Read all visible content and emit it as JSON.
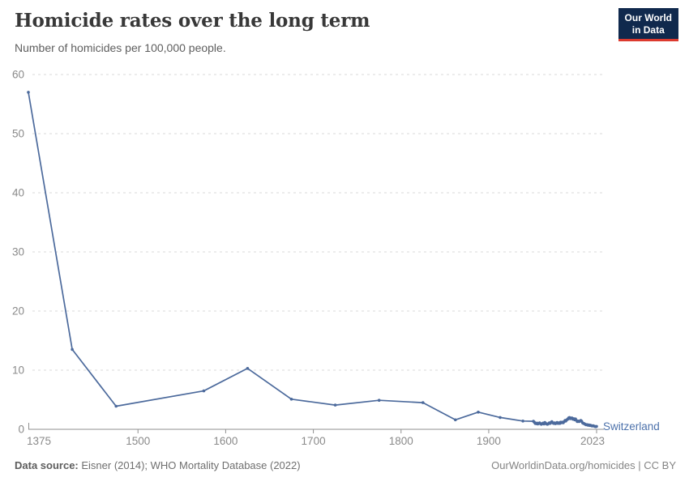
{
  "header": {
    "title": "Homicide rates over the long term",
    "subtitle": "Number of homicides per 100,000 people.",
    "logo_line1": "Our World",
    "logo_line2": "in Data"
  },
  "footer": {
    "source_label": "Data source:",
    "source_text": " Eisner (2014); WHO Mortality Database (2022)",
    "credit": "OurWorldinData.org/homicides | CC BY"
  },
  "colors": {
    "series": "#4c6a9c",
    "series_label": "#4d72ab",
    "grid": "#d9d9d9",
    "axis": "#8f8f8f",
    "tick_text": "#8a8a8a",
    "logo_bg": "#10294d",
    "logo_red": "#dc3a2f"
  },
  "chart_data": {
    "type": "line",
    "title": "Homicide rates over the long term",
    "subtitle": "Number of homicides per 100,000 people.",
    "xlabel": "",
    "ylabel": "",
    "xlim": [
      1375,
      2023
    ],
    "ylim": [
      0,
      60
    ],
    "yticks": [
      0,
      10,
      20,
      30,
      40,
      50,
      60
    ],
    "xticks": [
      1375,
      1500,
      1600,
      1700,
      1800,
      1900,
      2023
    ],
    "grid": "horizontal-dashed",
    "legend": "inline-end-label",
    "series": [
      {
        "name": "Switzerland",
        "color": "#4c6a9c",
        "points": [
          [
            1375,
            57
          ],
          [
            1425,
            13.5
          ],
          [
            1475,
            3.9
          ],
          [
            1575,
            6.5
          ],
          [
            1625,
            10.3
          ],
          [
            1675,
            5.1
          ],
          [
            1725,
            4.1
          ],
          [
            1775,
            4.9
          ],
          [
            1825,
            4.5
          ],
          [
            1862,
            1.6
          ],
          [
            1888,
            2.9
          ],
          [
            1913,
            2.0
          ],
          [
            1939,
            1.4
          ],
          [
            1951,
            1.35
          ],
          [
            1952,
            1.2
          ],
          [
            1953,
            1.0
          ],
          [
            1954,
            0.95
          ],
          [
            1955,
            1.05
          ],
          [
            1956,
            0.9
          ],
          [
            1957,
            1.0
          ],
          [
            1958,
            1.1
          ],
          [
            1959,
            0.95
          ],
          [
            1960,
            0.85
          ],
          [
            1961,
            0.95
          ],
          [
            1962,
            1.05
          ],
          [
            1963,
            0.9
          ],
          [
            1964,
            1.15
          ],
          [
            1965,
            1.0
          ],
          [
            1966,
            0.9
          ],
          [
            1967,
            0.85
          ],
          [
            1968,
            0.95
          ],
          [
            1969,
            1.1
          ],
          [
            1970,
            1.0
          ],
          [
            1971,
            1.15
          ],
          [
            1972,
            1.3
          ],
          [
            1973,
            1.1
          ],
          [
            1974,
            1.0
          ],
          [
            1975,
            1.1
          ],
          [
            1976,
            0.95
          ],
          [
            1977,
            1.05
          ],
          [
            1978,
            1.15
          ],
          [
            1979,
            1.0
          ],
          [
            1980,
            1.1
          ],
          [
            1981,
            1.0
          ],
          [
            1982,
            1.2
          ],
          [
            1983,
            1.1
          ],
          [
            1984,
            1.2
          ],
          [
            1985,
            1.1
          ],
          [
            1986,
            1.3
          ],
          [
            1987,
            1.5
          ],
          [
            1988,
            1.4
          ],
          [
            1989,
            1.6
          ],
          [
            1990,
            1.7
          ],
          [
            1991,
            1.9
          ],
          [
            1992,
            2.0
          ],
          [
            1993,
            1.8
          ],
          [
            1994,
            1.9
          ],
          [
            1995,
            1.9
          ],
          [
            1996,
            1.7
          ],
          [
            1997,
            1.8
          ],
          [
            1998,
            1.6
          ],
          [
            1999,
            1.75
          ],
          [
            2000,
            1.5
          ],
          [
            2001,
            1.3
          ],
          [
            2002,
            1.4
          ],
          [
            2003,
            1.3
          ],
          [
            2004,
            1.4
          ],
          [
            2005,
            1.5
          ],
          [
            2006,
            1.35
          ],
          [
            2007,
            1.1
          ],
          [
            2008,
            1.0
          ],
          [
            2009,
            0.95
          ],
          [
            2010,
            0.85
          ],
          [
            2011,
            0.75
          ],
          [
            2012,
            0.8
          ],
          [
            2013,
            0.7
          ],
          [
            2014,
            0.75
          ],
          [
            2015,
            0.65
          ],
          [
            2016,
            0.7
          ],
          [
            2017,
            0.6
          ],
          [
            2018,
            0.55
          ],
          [
            2019,
            0.6
          ],
          [
            2020,
            0.55
          ],
          [
            2021,
            0.5
          ],
          [
            2022,
            0.45
          ],
          [
            2023,
            0.5
          ]
        ]
      }
    ]
  }
}
